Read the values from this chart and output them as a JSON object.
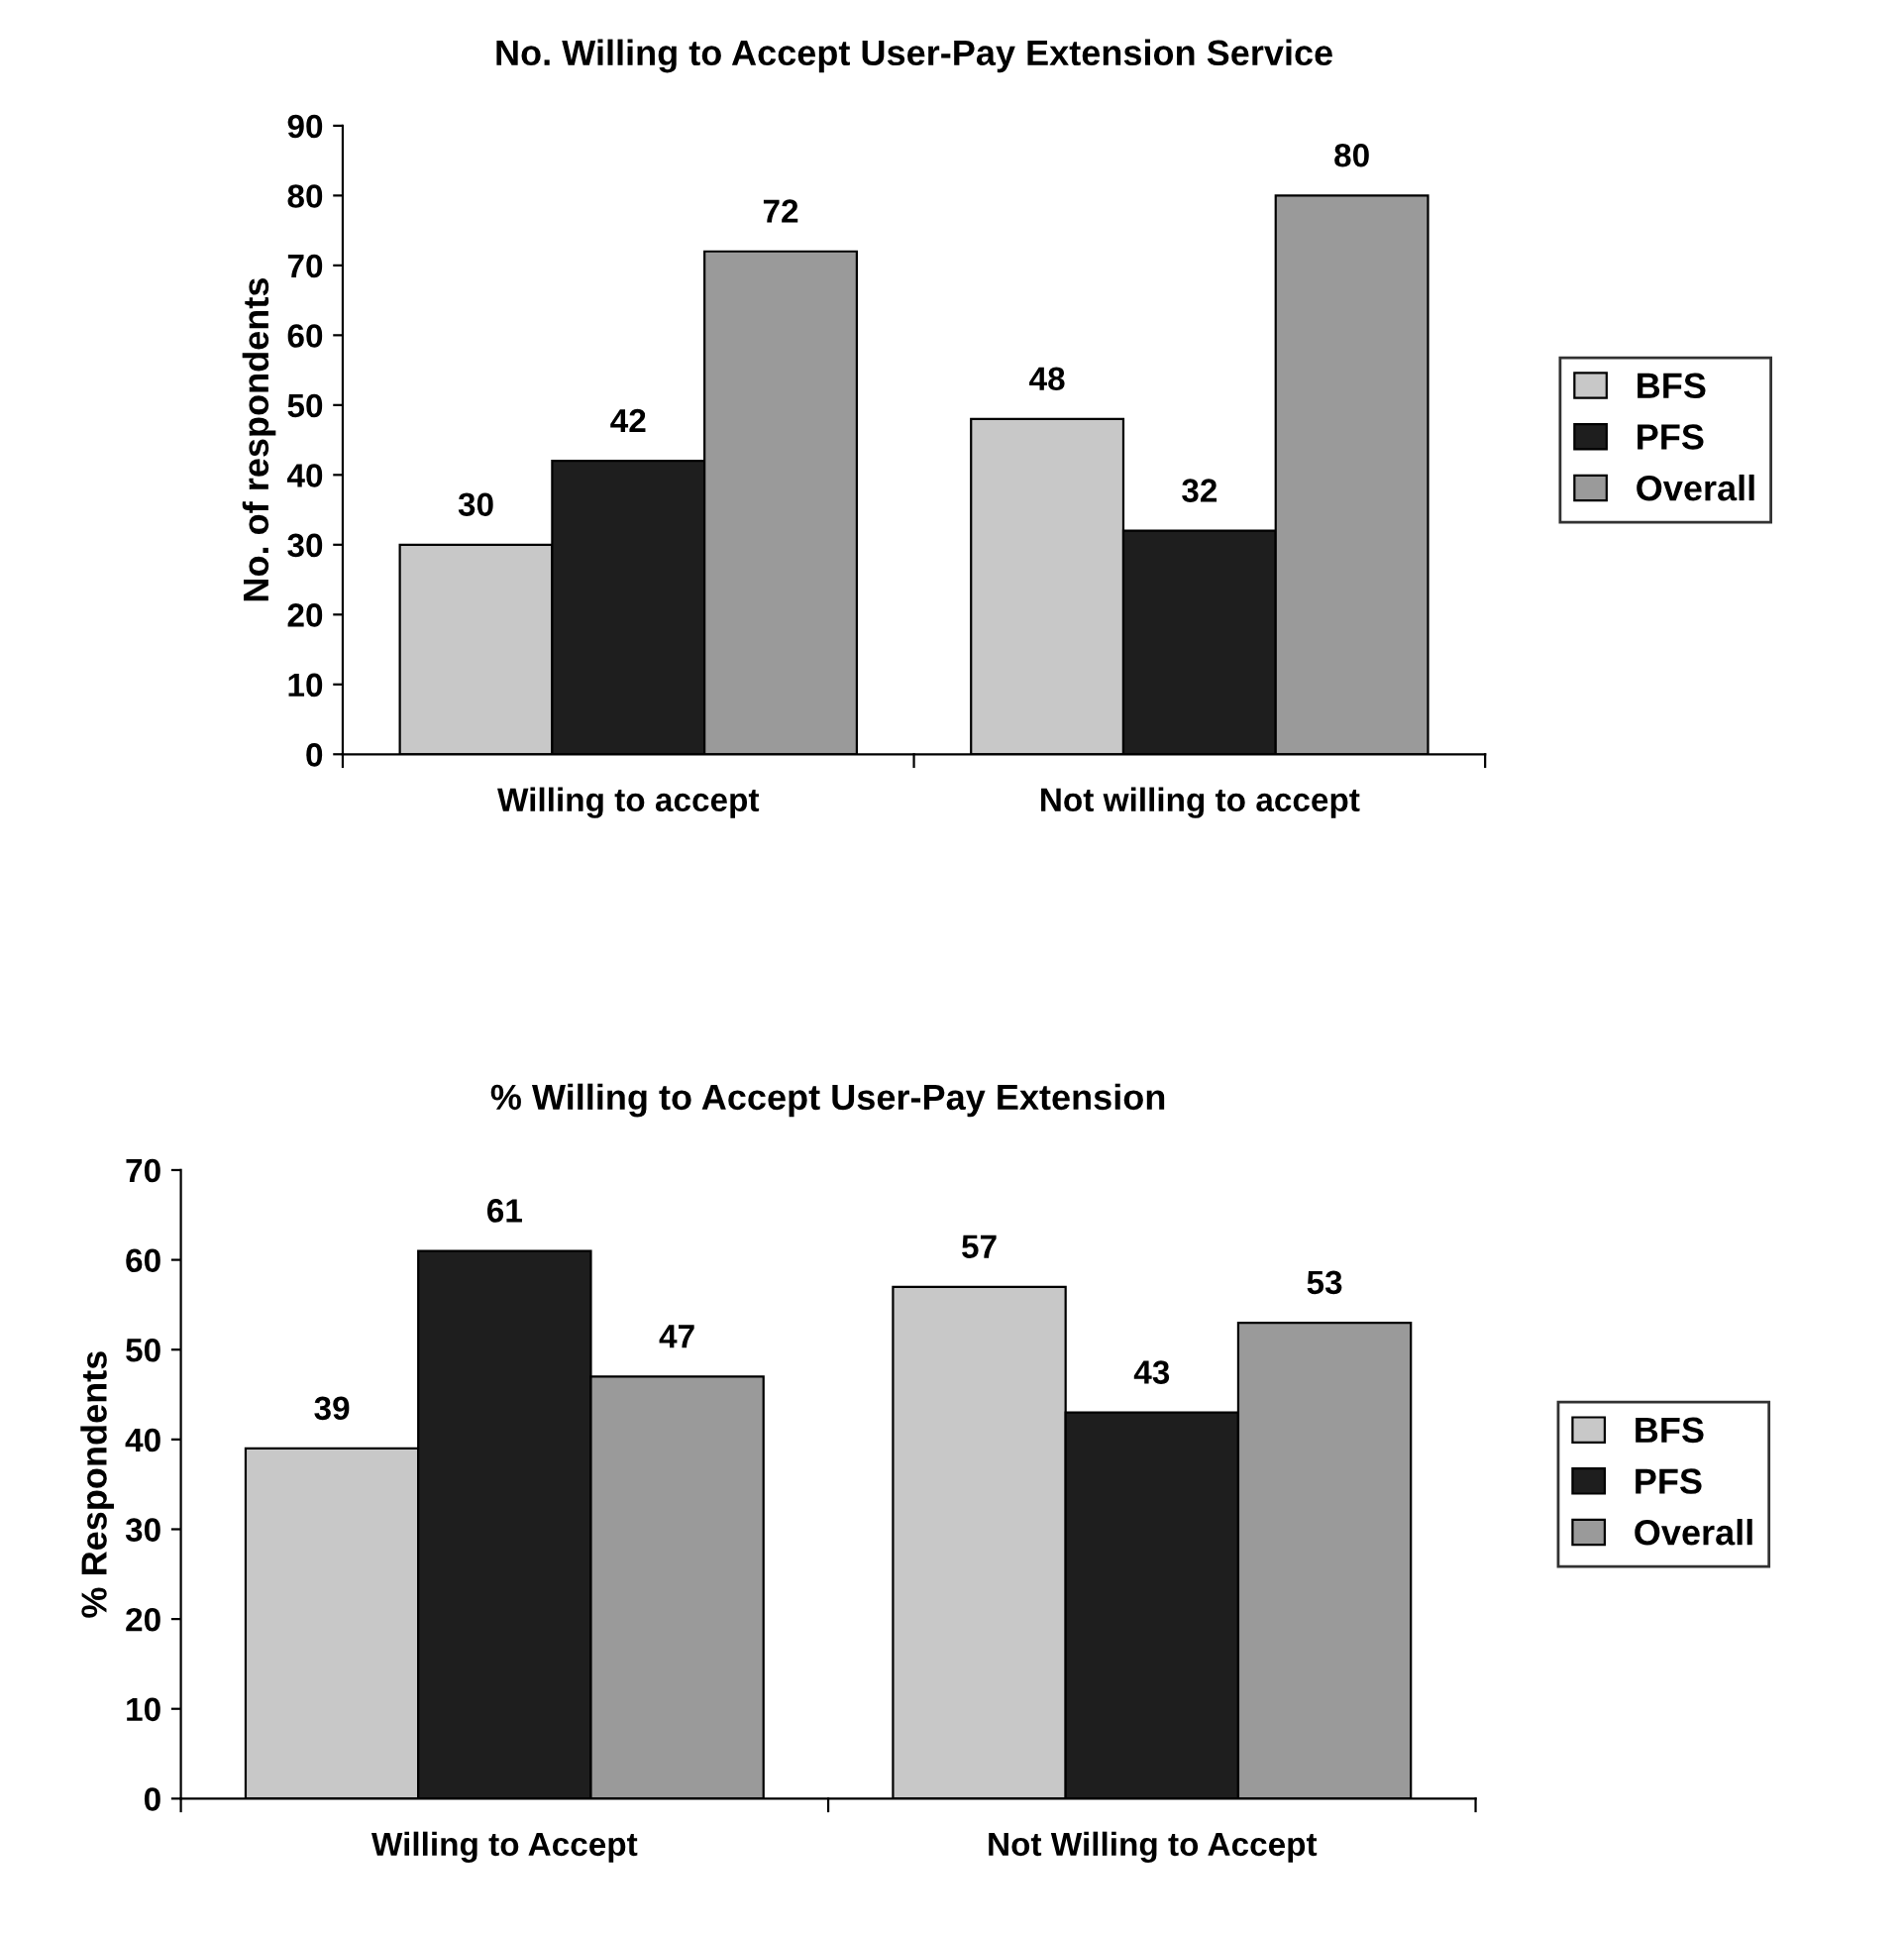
{
  "chart_data": [
    {
      "type": "bar",
      "title": "No. Willing to Accept User-Pay Extension Service",
      "ylabel": "No. of respondents",
      "categories": [
        "Willing to accept",
        "Not willing to accept"
      ],
      "series": [
        {
          "name": "BFS",
          "color": "#c8c8c8",
          "values": [
            30,
            48
          ]
        },
        {
          "name": "PFS",
          "color": "#1e1e1e",
          "values": [
            42,
            32
          ]
        },
        {
          "name": "Overall",
          "color": "#9a9a9a",
          "values": [
            72,
            80
          ]
        }
      ],
      "ylim": [
        0,
        90
      ],
      "yticks": [
        0,
        10,
        20,
        30,
        40,
        50,
        60,
        70,
        80,
        90
      ],
      "data_labels": true,
      "grid": false,
      "legend": "right"
    },
    {
      "type": "bar",
      "title": "% Willing to Accept User-Pay Extension",
      "ylabel": "% Respondents",
      "categories": [
        "Willing to Accept",
        "Not Willing to Accept"
      ],
      "series": [
        {
          "name": "BFS",
          "color": "#c8c8c8",
          "values": [
            39,
            57
          ]
        },
        {
          "name": "PFS",
          "color": "#1e1e1e",
          "values": [
            61,
            43
          ]
        },
        {
          "name": "Overall",
          "color": "#9a9a9a",
          "values": [
            47,
            53
          ]
        }
      ],
      "ylim": [
        0,
        70
      ],
      "yticks": [
        0,
        10,
        20,
        30,
        40,
        50,
        60,
        70
      ],
      "data_labels": true,
      "grid": false,
      "legend": "right"
    }
  ]
}
